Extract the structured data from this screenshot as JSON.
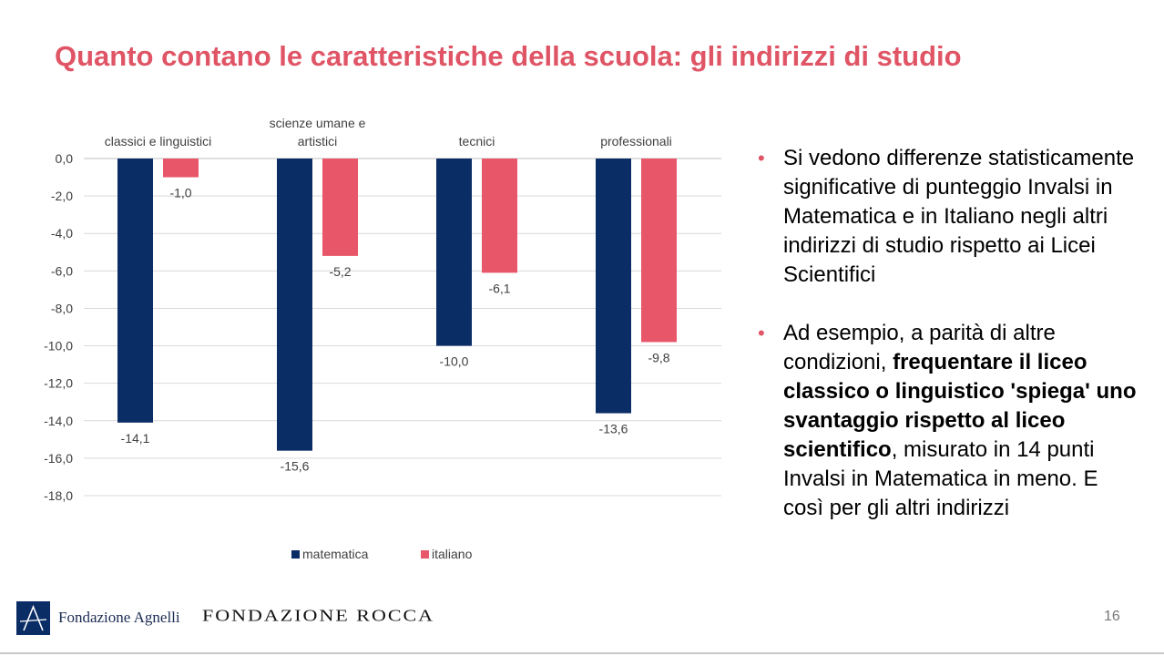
{
  "title": "Quanto contano le caratteristiche della scuola: gli indirizzi di studio",
  "chart_data": {
    "type": "bar",
    "categories": [
      "classici e linguistici",
      "scienze umane e artistici",
      "tecnici",
      "professionali"
    ],
    "category_label_lines": [
      [
        "classici e linguistici"
      ],
      [
        "scienze umane e",
        "artistici"
      ],
      [
        "tecnici"
      ],
      [
        "professionali"
      ]
    ],
    "series": [
      {
        "name": "matematica",
        "values": [
          -14.1,
          -15.6,
          -10.0,
          -13.6
        ],
        "labels": [
          "-14,1",
          "-15,6",
          "-10,0",
          "-13,6"
        ],
        "color": "#0b2d66"
      },
      {
        "name": "italiano",
        "values": [
          -1.0,
          -5.2,
          -6.1,
          -9.8
        ],
        "labels": [
          "-1,0",
          "-5,2",
          "-6,1",
          "-9,8"
        ],
        "color": "#e8566a"
      }
    ],
    "ylim": [
      -18,
      0
    ],
    "yticks": [
      "0,0",
      "-2,0",
      "-4,0",
      "-6,0",
      "-8,0",
      "-10,0",
      "-12,0",
      "-14,0",
      "-16,0",
      "-18,0"
    ],
    "grid": true,
    "legend": "bottom",
    "category_labels_position": "top"
  },
  "bullets": [
    {
      "parts": [
        {
          "text": "Si vedono differenze statisticamente significative di punteggio Invalsi in Matematica e in Italiano negli altri indirizzi di studio rispetto ai Licei Scientifici",
          "bold": false
        }
      ]
    },
    {
      "parts": [
        {
          "text": "Ad esempio, a parità di altre condizioni, ",
          "bold": false
        },
        {
          "text": "frequentare il liceo classico o linguistico 'spiega' uno svantaggio rispetto al liceo scientifico",
          "bold": true
        },
        {
          "text": ", misurato in 14 punti Invalsi in Matematica in meno. E così per gli altri indirizzi",
          "bold": false
        }
      ]
    }
  ],
  "bullet_symbol": "•",
  "footer": {
    "logo_agnelli": "Fondazione Agnelli",
    "logo_rocca": "FONDAZIONE ROCCA",
    "page_number": "16"
  },
  "colors": {
    "accent": "#e05566",
    "navy": "#0b2d66",
    "pink": "#e8566a"
  }
}
